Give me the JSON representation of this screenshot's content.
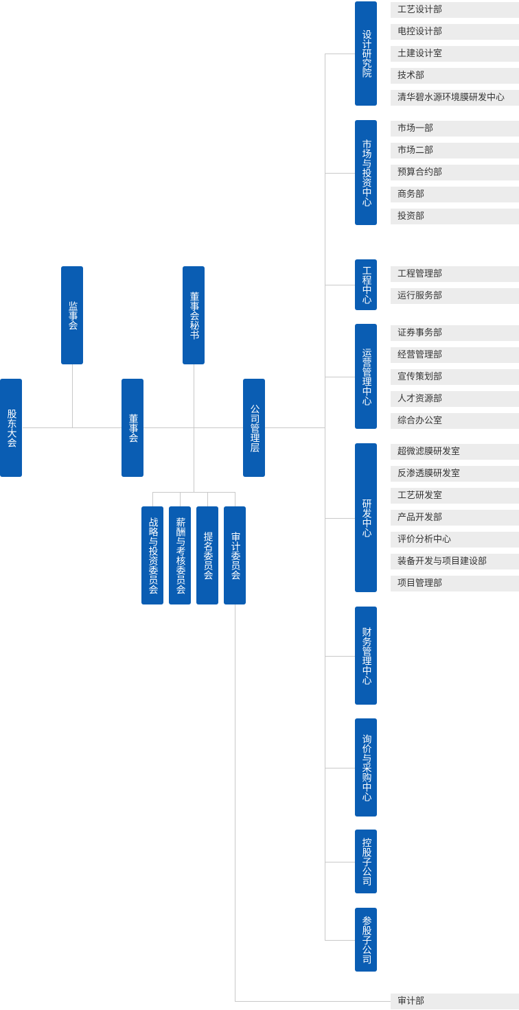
{
  "colors": {
    "node": "#0a5db3",
    "item_bg": "#ececec",
    "line": "#c8c8c8"
  },
  "top": {
    "shareholders": "股东大会",
    "supervisors": "监事会",
    "board": "董事会",
    "secretary": "董事会秘书",
    "management": "公司管理层"
  },
  "committees": [
    "战略与投资委员会",
    "薪酬与考核委员会",
    "提名委员会",
    "审计委员会"
  ],
  "audit_dept": "审计部",
  "departments": [
    {
      "name": "设计研究院",
      "items": [
        "工艺设计部",
        "电控设计部",
        "土建设计室",
        "技术部",
        "清华碧水源环境膜研发中心"
      ]
    },
    {
      "name": "市场与投资中心",
      "items": [
        "市场一部",
        "市场二部",
        "预算合约部",
        "商务部",
        "投资部"
      ]
    },
    {
      "name": "工程中心",
      "items": [
        "工程管理部",
        "运行服务部"
      ]
    },
    {
      "name": "运营管理中心",
      "items": [
        "证券事务部",
        "经营管理部",
        "宣传策划部",
        "人才资源部",
        "综合办公室"
      ]
    },
    {
      "name": "研发中心",
      "items": [
        "超微滤膜研发室",
        "反渗透膜研发室",
        "工艺研发室",
        "产品开发部",
        "评价分析中心",
        "装备开发与项目建设部",
        "项目管理部"
      ]
    },
    {
      "name": "财务管理中心",
      "items": []
    },
    {
      "name": "询价与采购中心",
      "items": []
    },
    {
      "name": "控股子公司",
      "items": []
    },
    {
      "name": "参股子公司",
      "items": []
    }
  ]
}
